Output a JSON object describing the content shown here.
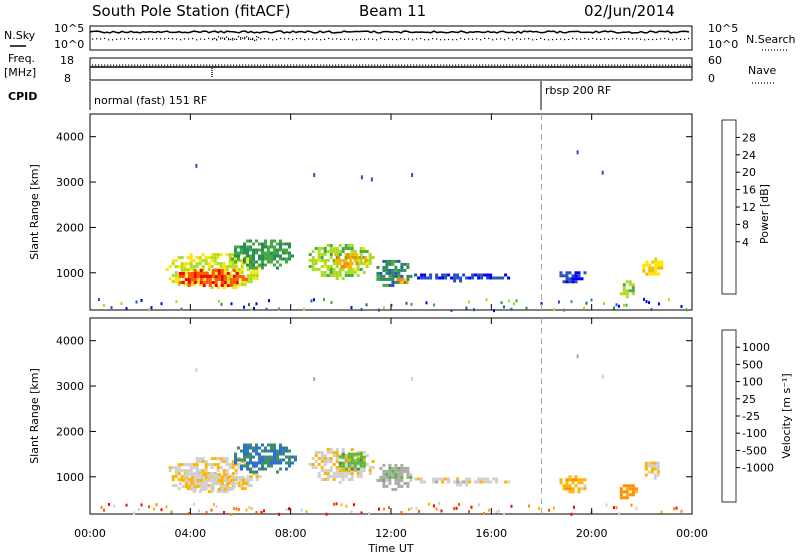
{
  "header": {
    "title": "South Pole Station (fitACF)",
    "beam": "Beam 11",
    "date": "02/Jun/2014"
  },
  "top_panels": {
    "nsky_label": "N.Sky",
    "nsearch_label": "N.Search",
    "freq_label_1": "Freq.",
    "freq_label_2": "[MHz]",
    "nave_label": "Nave",
    "cpid_label": "CPID",
    "n_ticks_left": [
      "10^5",
      "10^0"
    ],
    "n_ticks_right": [
      "10^5",
      "10^0"
    ],
    "freq_ticks": [
      "18",
      "8"
    ],
    "nave_ticks": [
      "60",
      "0"
    ],
    "cpid_1": "normal (fast) 151 RF",
    "cpid_2": "rbsp 200 RF"
  },
  "axes": {
    "ylabel": "Slant Range [km]",
    "xlabel": "Time UT",
    "yticks": [
      "4000",
      "3000",
      "2000",
      "1000"
    ],
    "xticks": [
      "00:00",
      "04:00",
      "08:00",
      "12:00",
      "16:00",
      "20:00",
      "00:00"
    ]
  },
  "colorbars": {
    "power_label": "Power [dB]",
    "power_ticks": [
      "28",
      "24",
      "20",
      "16",
      "12",
      "8",
      "4"
    ],
    "power_colors": [
      "#ff0000",
      "#ff5a00",
      "#ff8c00",
      "#ffb400",
      "#ffe600",
      "#aadd22",
      "#44aa44",
      "#2e8b57",
      "#2a52be",
      "#0000ff"
    ],
    "velocity_label": "Velocity [m s⁻¹]",
    "velocity_ticks": [
      "1000",
      "500",
      "100",
      "25",
      "-25",
      "-100",
      "-500",
      "-1000"
    ],
    "velocity_colors": [
      "#1a3aaa",
      "#2e6fd0",
      "#3a8f6f",
      "#55bb33",
      "#aaaaaa",
      "#d0d0d0",
      "#ffb400",
      "#ff8c00",
      "#ff5a00",
      "#ff0000"
    ]
  },
  "chart_data": [
    {
      "type": "heatmap",
      "title": "Power [dB]",
      "xlabel": "Time UT",
      "ylabel": "Slant Range [km]",
      "x_range_hours": [
        0,
        24
      ],
      "y_range_km": [
        180,
        4500
      ],
      "color_range": [
        0,
        32
      ],
      "blobs": [
        {
          "t0": 2.9,
          "t1": 6.8,
          "r0": 650,
          "r1": 1500,
          "value": 16
        },
        {
          "t0": 3.3,
          "t1": 6.2,
          "r0": 700,
          "r1": 1150,
          "value": 28
        },
        {
          "t0": 5.5,
          "t1": 8.2,
          "r0": 1100,
          "r1": 1800,
          "value": 10
        },
        {
          "t0": 8.6,
          "t1": 11.3,
          "r0": 900,
          "r1": 1700,
          "value": 14
        },
        {
          "t0": 9.5,
          "t1": 11.0,
          "r0": 1150,
          "r1": 1500,
          "value": 22
        },
        {
          "t0": 11.3,
          "t1": 12.8,
          "r0": 700,
          "r1": 1350,
          "value": 8
        },
        {
          "t0": 12.1,
          "t1": 12.7,
          "r0": 750,
          "r1": 950,
          "value": 22
        },
        {
          "t0": 12.8,
          "t1": 16.8,
          "r0": 850,
          "r1": 1050,
          "value": 4
        },
        {
          "t0": 18.6,
          "t1": 19.8,
          "r0": 800,
          "r1": 1100,
          "value": 4
        },
        {
          "t0": 21.0,
          "t1": 21.8,
          "r0": 500,
          "r1": 900,
          "value": 14
        },
        {
          "t0": 21.9,
          "t1": 22.8,
          "r0": 950,
          "r1": 1400,
          "value": 18
        }
      ],
      "sparse": [
        {
          "t": 10.8,
          "r": 3150,
          "value": 6
        },
        {
          "t": 11.2,
          "r": 3100,
          "value": 6
        },
        {
          "t": 4.2,
          "r": 3400,
          "value": 6
        },
        {
          "t": 8.9,
          "r": 3200,
          "value": 6
        },
        {
          "t": 12.8,
          "r": 3200,
          "value": 6
        },
        {
          "t": 19.4,
          "r": 3700,
          "value": 4
        },
        {
          "t": 20.4,
          "r": 3250,
          "value": 4
        }
      ]
    },
    {
      "type": "heatmap",
      "title": "Velocity [m s⁻¹]",
      "xlabel": "Time UT",
      "ylabel": "Slant Range [km]",
      "x_range_hours": [
        0,
        24
      ],
      "y_range_km": [
        180,
        4500
      ],
      "color_range": [
        -1000,
        1000
      ],
      "blobs": [
        {
          "t0": 2.9,
          "t1": 6.8,
          "r0": 650,
          "r1": 1500,
          "value": -200
        },
        {
          "t0": 3.3,
          "t1": 6.2,
          "r0": 700,
          "r1": 1150,
          "value": -150
        },
        {
          "t0": 5.5,
          "t1": 8.2,
          "r0": 1100,
          "r1": 1800,
          "value": 600
        },
        {
          "t0": 8.6,
          "t1": 11.3,
          "r0": 900,
          "r1": 1700,
          "value": -150
        },
        {
          "t0": 9.8,
          "t1": 11.0,
          "r0": 1150,
          "r1": 1600,
          "value": 300
        },
        {
          "t0": 11.3,
          "t1": 12.8,
          "r0": 700,
          "r1": 1350,
          "value": 120
        },
        {
          "t0": 12.8,
          "t1": 16.8,
          "r0": 850,
          "r1": 1050,
          "value": -100
        },
        {
          "t0": 18.6,
          "t1": 19.8,
          "r0": 650,
          "r1": 1100,
          "value": -300
        },
        {
          "t0": 21.0,
          "t1": 21.8,
          "r0": 500,
          "r1": 900,
          "value": -500
        },
        {
          "t0": 22.0,
          "t1": 22.8,
          "r0": 950,
          "r1": 1400,
          "value": -200
        }
      ],
      "sparse": [
        {
          "t": 4.2,
          "r": 3400,
          "value": -100
        },
        {
          "t": 8.9,
          "r": 3200,
          "value": 0
        },
        {
          "t": 12.8,
          "r": 3200,
          "value": -200
        },
        {
          "t": 19.4,
          "r": 3700,
          "value": 0
        },
        {
          "t": 20.4,
          "r": 3250,
          "value": -100
        }
      ]
    }
  ],
  "marker_time_hours": 18.0
}
